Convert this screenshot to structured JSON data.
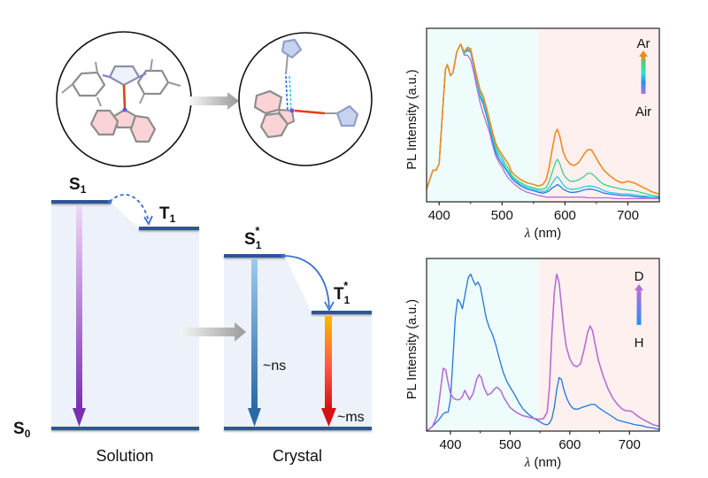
{
  "figure": {
    "molecule_panel": {
      "left_circle": "solution-state molecular structure (carbazole + imidazolium, twisted)",
      "right_circle": "crystal-state molecular packing with C-H···N interactions",
      "arrow": "gray-transition-arrow"
    },
    "energy_diagram": {
      "solution": {
        "label": "Solution",
        "levels": {
          "S1": "S",
          "S1_sub": "1",
          "T1": "T",
          "T1_sub": "1",
          "S0": "S",
          "S0_sub": "0"
        }
      },
      "crystal": {
        "label": "Crystal",
        "levels": {
          "S1": "S",
          "S1_sub": "1",
          "S1_sup": "*",
          "T1": "T",
          "T1_sub": "1",
          "T1_sup": "*"
        },
        "fluorescence_lifetime": "~ns",
        "phosphorescence_lifetime": "~ms"
      },
      "colors": {
        "level_line": "#2f5597",
        "panel_fill": "#edf2fa",
        "isc_arrow": "#3a6fd0",
        "solution_emission_top": "#e6c5ef",
        "solution_emission_bottom": "#7b2fb0",
        "crystal_fluor_top": "#8fbde6",
        "crystal_fluor_bottom": "#2e6fad",
        "crystal_phos_top": "#ffb300",
        "crystal_phos_bottom": "#d81b1b"
      }
    }
  },
  "chart_data": [
    {
      "type": "line",
      "title": "",
      "xlabel_italic": "λ",
      "xlabel_rest": " (nm)",
      "ylabel": "PL Intensity (a.u.)",
      "xlim": [
        380,
        750
      ],
      "ylim": [
        0,
        1.1
      ],
      "xticks": [
        400,
        500,
        600,
        700
      ],
      "xtick_labels": [
        "400",
        "500",
        "600",
        "700"
      ],
      "minor_xticks": [
        450,
        550,
        650
      ],
      "grid": false,
      "shading": [
        {
          "from": 380,
          "to": 558,
          "color": "#effcfc"
        },
        {
          "from": 558,
          "to": 750,
          "color": "#fdf0ef"
        }
      ],
      "legend": {
        "placement": "top-right",
        "top_label": "Ar",
        "bottom_label": "Air",
        "gradient": [
          "#b46fd6",
          "#2b8ef0",
          "#2fe0d0",
          "#4ccf7a",
          "#f08a1e"
        ]
      },
      "x": [
        380,
        390,
        395,
        400,
        405,
        410,
        413,
        418,
        422,
        428,
        434,
        440,
        445,
        450,
        455,
        460,
        465,
        470,
        475,
        480,
        485,
        490,
        495,
        500,
        505,
        510,
        515,
        520,
        530,
        540,
        550,
        558,
        565,
        570,
        575,
        580,
        585,
        588,
        592,
        597,
        602,
        608,
        615,
        622,
        630,
        636,
        642,
        648,
        655,
        662,
        670,
        680,
        690,
        700,
        710,
        720,
        730,
        740,
        750
      ],
      "series": [
        {
          "name": "Air",
          "color": "#b46fd6",
          "values": [
            0.08,
            0.2,
            0.2,
            0.24,
            0.55,
            0.84,
            0.87,
            0.8,
            0.82,
            0.95,
            1.0,
            0.93,
            0.93,
            0.9,
            0.82,
            0.72,
            0.63,
            0.56,
            0.5,
            0.44,
            0.36,
            0.29,
            0.25,
            0.22,
            0.18,
            0.15,
            0.13,
            0.11,
            0.08,
            0.06,
            0.05,
            0.04,
            0.035,
            0.03,
            0.03,
            0.03,
            0.03,
            0.03,
            0.03,
            0.03,
            0.03,
            0.03,
            0.03,
            0.03,
            0.03,
            0.025,
            0.025,
            0.025,
            0.025,
            0.025,
            0.025,
            0.02,
            0.02,
            0.02,
            0.02,
            0.02,
            0.02,
            0.02,
            0.02
          ]
        },
        {
          "name": "blue",
          "color": "#2a78e0",
          "values": [
            0.08,
            0.2,
            0.2,
            0.24,
            0.55,
            0.84,
            0.87,
            0.8,
            0.82,
            0.95,
            1.0,
            0.94,
            0.96,
            0.95,
            0.86,
            0.76,
            0.67,
            0.62,
            0.55,
            0.47,
            0.39,
            0.31,
            0.27,
            0.24,
            0.21,
            0.18,
            0.15,
            0.13,
            0.1,
            0.08,
            0.07,
            0.06,
            0.055,
            0.06,
            0.07,
            0.09,
            0.1,
            0.11,
            0.1,
            0.08,
            0.07,
            0.06,
            0.06,
            0.065,
            0.075,
            0.08,
            0.08,
            0.075,
            0.065,
            0.055,
            0.05,
            0.045,
            0.04,
            0.04,
            0.035,
            0.03,
            0.03,
            0.03,
            0.025
          ]
        },
        {
          "name": "cyan",
          "color": "#24d0de",
          "values": [
            0.08,
            0.2,
            0.2,
            0.24,
            0.55,
            0.84,
            0.87,
            0.8,
            0.82,
            0.95,
            1.0,
            0.94,
            0.97,
            0.96,
            0.87,
            0.77,
            0.68,
            0.64,
            0.57,
            0.49,
            0.41,
            0.33,
            0.29,
            0.26,
            0.22,
            0.19,
            0.16,
            0.14,
            0.11,
            0.09,
            0.08,
            0.07,
            0.065,
            0.07,
            0.09,
            0.12,
            0.15,
            0.16,
            0.14,
            0.11,
            0.09,
            0.08,
            0.08,
            0.085,
            0.095,
            0.1,
            0.1,
            0.095,
            0.085,
            0.07,
            0.06,
            0.055,
            0.05,
            0.05,
            0.045,
            0.04,
            0.035,
            0.03,
            0.03
          ]
        },
        {
          "name": "green",
          "color": "#3ecf8c",
          "values": [
            0.08,
            0.2,
            0.2,
            0.24,
            0.55,
            0.84,
            0.87,
            0.8,
            0.82,
            0.95,
            1.0,
            0.95,
            0.98,
            0.97,
            0.88,
            0.78,
            0.7,
            0.66,
            0.59,
            0.51,
            0.43,
            0.35,
            0.31,
            0.28,
            0.24,
            0.21,
            0.17,
            0.15,
            0.12,
            0.1,
            0.09,
            0.08,
            0.08,
            0.09,
            0.13,
            0.19,
            0.25,
            0.27,
            0.24,
            0.18,
            0.15,
            0.13,
            0.13,
            0.14,
            0.16,
            0.18,
            0.18,
            0.16,
            0.13,
            0.11,
            0.1,
            0.09,
            0.08,
            0.075,
            0.07,
            0.06,
            0.05,
            0.04,
            0.035
          ]
        },
        {
          "name": "Ar",
          "color": "#f08a1e",
          "values": [
            0.08,
            0.2,
            0.2,
            0.24,
            0.55,
            0.84,
            0.87,
            0.8,
            0.82,
            0.95,
            1.0,
            0.95,
            0.98,
            0.97,
            0.88,
            0.79,
            0.71,
            0.67,
            0.6,
            0.52,
            0.44,
            0.37,
            0.33,
            0.3,
            0.27,
            0.24,
            0.19,
            0.17,
            0.14,
            0.12,
            0.11,
            0.1,
            0.11,
            0.14,
            0.22,
            0.34,
            0.44,
            0.46,
            0.41,
            0.32,
            0.27,
            0.24,
            0.23,
            0.25,
            0.3,
            0.33,
            0.33,
            0.29,
            0.24,
            0.2,
            0.17,
            0.14,
            0.12,
            0.13,
            0.12,
            0.1,
            0.08,
            0.06,
            0.05
          ]
        }
      ]
    },
    {
      "type": "line",
      "title": "",
      "xlabel_italic": "λ",
      "xlabel_rest": " (nm)",
      "ylabel": "PL Intensity (a.u.)",
      "xlim": [
        360,
        750
      ],
      "ylim": [
        0,
        1.1
      ],
      "xticks": [
        400,
        500,
        600,
        700
      ],
      "xtick_labels": [
        "400",
        "500",
        "600",
        "700"
      ],
      "minor_xticks": [
        450,
        550,
        650
      ],
      "grid": false,
      "shading": [
        {
          "from": 360,
          "to": 548,
          "color": "#effcfc"
        },
        {
          "from": 548,
          "to": 750,
          "color": "#fdf0ef"
        }
      ],
      "legend": {
        "placement": "top-right",
        "top_label": "D",
        "bottom_label": "H",
        "gradient": [
          "#2b8ef0",
          "#b46fd6"
        ]
      },
      "series": [
        {
          "name": "H",
          "color": "#1f76dd",
          "x": [
            360,
            370,
            380,
            388,
            392,
            396,
            400,
            404,
            408,
            412,
            416,
            420,
            425,
            430,
            434,
            438,
            442,
            446,
            450,
            455,
            460,
            465,
            470,
            476,
            482,
            488,
            494,
            500,
            508,
            515,
            522,
            530,
            540,
            550,
            556,
            562,
            566,
            570,
            574,
            578,
            582,
            586,
            589,
            592,
            596,
            600,
            604,
            608,
            614,
            620,
            628,
            636,
            642,
            648,
            656,
            664,
            672,
            680,
            690,
            700,
            710,
            720,
            730,
            740,
            750
          ],
          "values": [
            0.0,
            0.03,
            0.07,
            0.11,
            0.12,
            0.12,
            0.2,
            0.45,
            0.72,
            0.84,
            0.82,
            0.78,
            0.88,
            0.98,
            1.0,
            0.96,
            0.93,
            0.95,
            0.92,
            0.82,
            0.72,
            0.66,
            0.62,
            0.55,
            0.46,
            0.38,
            0.32,
            0.28,
            0.23,
            0.18,
            0.14,
            0.11,
            0.08,
            0.06,
            0.045,
            0.04,
            0.05,
            0.08,
            0.15,
            0.26,
            0.34,
            0.33,
            0.28,
            0.24,
            0.2,
            0.17,
            0.15,
            0.14,
            0.14,
            0.15,
            0.16,
            0.17,
            0.17,
            0.15,
            0.13,
            0.11,
            0.09,
            0.07,
            0.06,
            0.05,
            0.04,
            0.035,
            0.025,
            0.02,
            0.01
          ]
        },
        {
          "name": "D",
          "color": "#b46fd6",
          "x": [
            360,
            370,
            378,
            384,
            388,
            392,
            396,
            400,
            405,
            410,
            415,
            420,
            424,
            428,
            432,
            438,
            444,
            448,
            452,
            456,
            462,
            468,
            474,
            478,
            484,
            490,
            500,
            510,
            520,
            530,
            540,
            548,
            556,
            562,
            566,
            570,
            574,
            578,
            582,
            586,
            590,
            594,
            600,
            606,
            612,
            618,
            624,
            630,
            634,
            638,
            642,
            648,
            656,
            664,
            672,
            680,
            688,
            694,
            700,
            706,
            712,
            720,
            730,
            740,
            750
          ],
          "values": [
            0.0,
            0.03,
            0.1,
            0.28,
            0.4,
            0.39,
            0.31,
            0.24,
            0.21,
            0.2,
            0.2,
            0.22,
            0.26,
            0.23,
            0.2,
            0.24,
            0.33,
            0.36,
            0.34,
            0.28,
            0.23,
            0.24,
            0.27,
            0.28,
            0.26,
            0.21,
            0.15,
            0.12,
            0.1,
            0.09,
            0.08,
            0.075,
            0.08,
            0.12,
            0.28,
            0.62,
            0.88,
            1.0,
            0.95,
            0.8,
            0.65,
            0.54,
            0.46,
            0.42,
            0.41,
            0.43,
            0.52,
            0.63,
            0.67,
            0.64,
            0.56,
            0.45,
            0.35,
            0.27,
            0.21,
            0.17,
            0.14,
            0.13,
            0.13,
            0.12,
            0.1,
            0.08,
            0.06,
            0.04,
            0.03
          ]
        }
      ]
    }
  ]
}
